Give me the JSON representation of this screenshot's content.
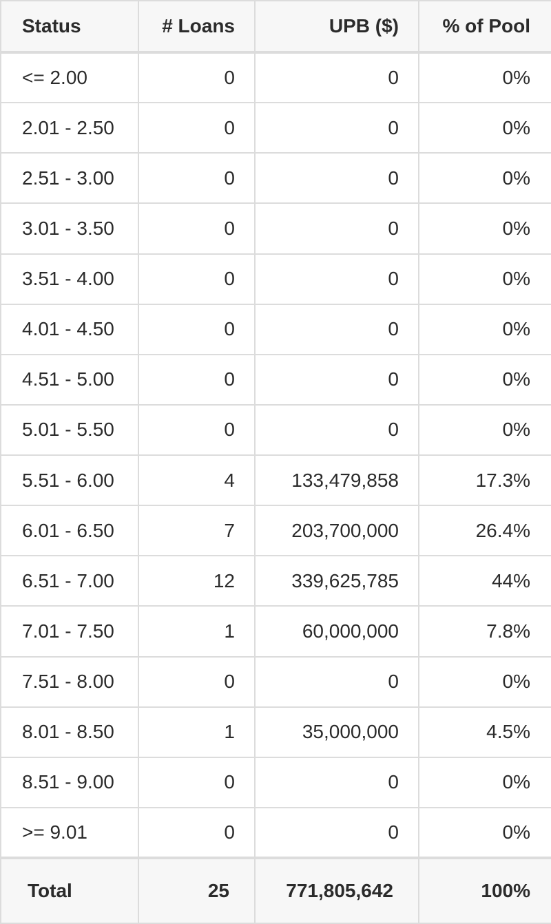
{
  "table": {
    "headers": [
      "Status",
      "# Loans",
      "UPB ($)",
      "% of Pool"
    ],
    "rows": [
      {
        "status": "<= 2.00",
        "loans": "0",
        "upb": "0",
        "pct": "0%"
      },
      {
        "status": "2.01 - 2.50",
        "loans": "0",
        "upb": "0",
        "pct": "0%"
      },
      {
        "status": "2.51 - 3.00",
        "loans": "0",
        "upb": "0",
        "pct": "0%"
      },
      {
        "status": "3.01 - 3.50",
        "loans": "0",
        "upb": "0",
        "pct": "0%"
      },
      {
        "status": "3.51 - 4.00",
        "loans": "0",
        "upb": "0",
        "pct": "0%"
      },
      {
        "status": "4.01 - 4.50",
        "loans": "0",
        "upb": "0",
        "pct": "0%"
      },
      {
        "status": "4.51 - 5.00",
        "loans": "0",
        "upb": "0",
        "pct": "0%"
      },
      {
        "status": "5.01 - 5.50",
        "loans": "0",
        "upb": "0",
        "pct": "0%"
      },
      {
        "status": "5.51 - 6.00",
        "loans": "4",
        "upb": "133,479,858",
        "pct": "17.3%"
      },
      {
        "status": "6.01 - 6.50",
        "loans": "7",
        "upb": "203,700,000",
        "pct": "26.4%"
      },
      {
        "status": "6.51 - 7.00",
        "loans": "12",
        "upb": "339,625,785",
        "pct": "44%"
      },
      {
        "status": "7.01 - 7.50",
        "loans": "1",
        "upb": "60,000,000",
        "pct": "7.8%"
      },
      {
        "status": "7.51 - 8.00",
        "loans": "0",
        "upb": "0",
        "pct": "0%"
      },
      {
        "status": "8.01 - 8.50",
        "loans": "1",
        "upb": "35,000,000",
        "pct": "4.5%"
      },
      {
        "status": "8.51 - 9.00",
        "loans": "0",
        "upb": "0",
        "pct": "0%"
      },
      {
        "status": ">= 9.01",
        "loans": "0",
        "upb": "0",
        "pct": "0%"
      }
    ],
    "total": {
      "label": "Total",
      "loans": "25",
      "upb": "771,805,642",
      "pct": "100%"
    }
  }
}
